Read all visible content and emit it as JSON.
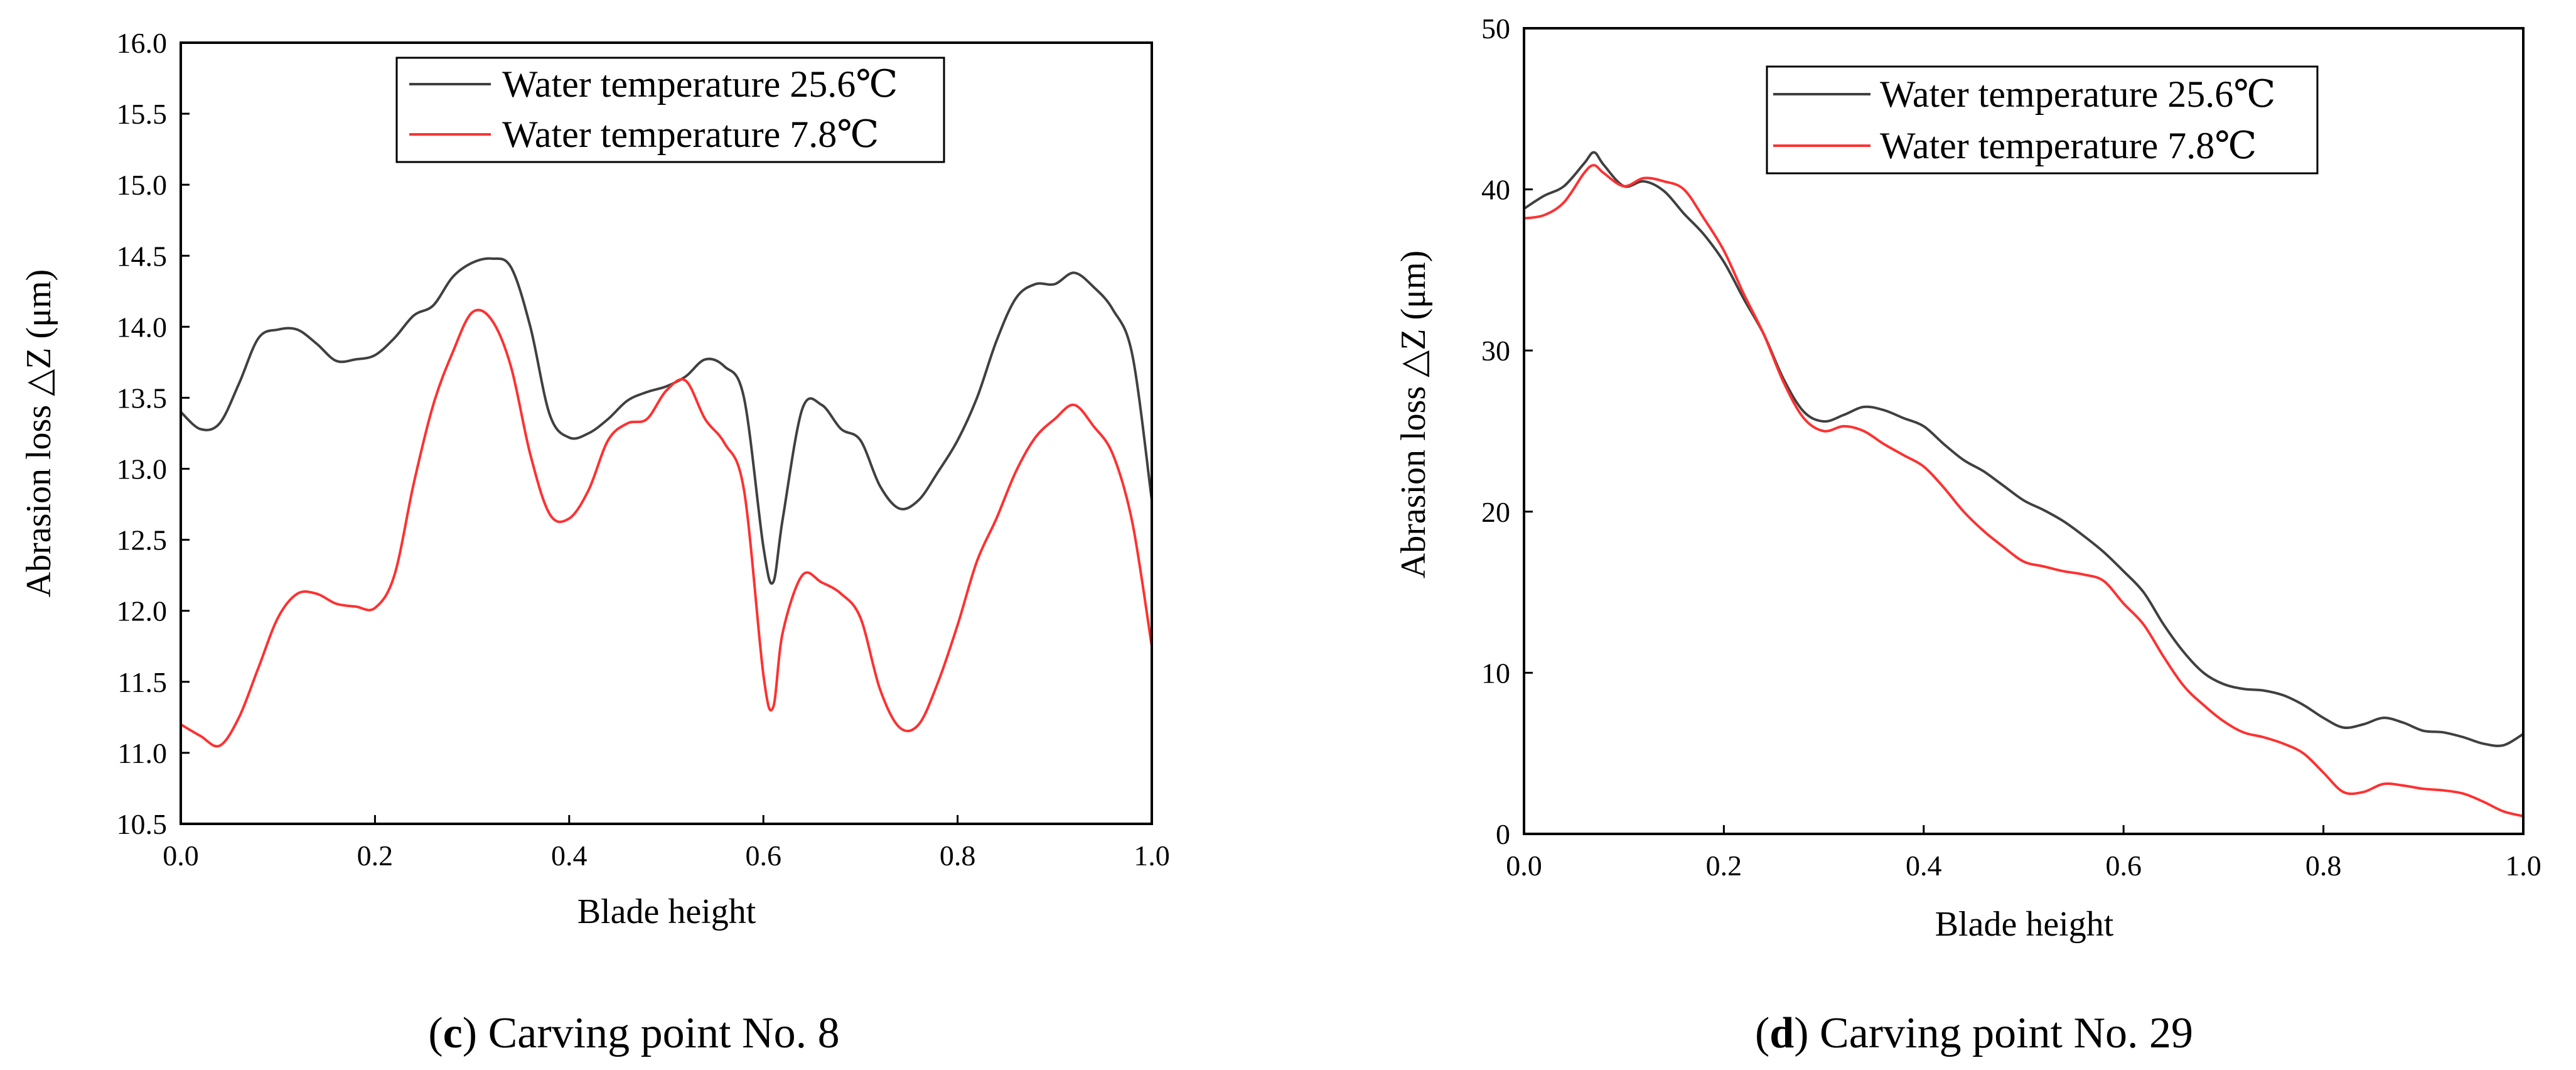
{
  "chart_data": [
    {
      "type": "line",
      "id": "c",
      "caption_letter": "c",
      "caption_text": "Carving point No. 8",
      "xlabel": "Blade height",
      "ylabel": "Abrasion loss △Z (μm)",
      "xlim": [
        0,
        1
      ],
      "ylim": [
        10.5,
        16
      ],
      "xticks": [
        0,
        0.2,
        0.4,
        0.6,
        0.8,
        1.0
      ],
      "xtick_labels": [
        "0.0",
        "0.2",
        "0.4",
        "0.6",
        "0.8",
        "1.0"
      ],
      "yticks": [
        10.5,
        11,
        11.5,
        12,
        12.5,
        13,
        13.5,
        14,
        14.5,
        15,
        15.5,
        16
      ],
      "ytick_labels": [
        "10.5",
        "11.0",
        "11.5",
        "12.0",
        "12.5",
        "13.0",
        "13.5",
        "14.0",
        "14.5",
        "15.0",
        "15.5",
        "16.0"
      ],
      "legend_position": "top-center",
      "series": [
        {
          "name": "Water temperature 25.6℃",
          "color": "#404040",
          "x": [
            0.0,
            0.02,
            0.04,
            0.06,
            0.08,
            0.1,
            0.12,
            0.14,
            0.16,
            0.18,
            0.2,
            0.22,
            0.24,
            0.26,
            0.28,
            0.3,
            0.32,
            0.34,
            0.36,
            0.38,
            0.4,
            0.42,
            0.44,
            0.46,
            0.48,
            0.5,
            0.52,
            0.54,
            0.56,
            0.58,
            0.6,
            0.61,
            0.62,
            0.64,
            0.66,
            0.68,
            0.7,
            0.72,
            0.74,
            0.76,
            0.78,
            0.8,
            0.82,
            0.84,
            0.86,
            0.88,
            0.9,
            0.92,
            0.94,
            0.96,
            0.98,
            1.0
          ],
          "y": [
            13.4,
            13.28,
            13.32,
            13.6,
            13.92,
            13.98,
            13.98,
            13.88,
            13.76,
            13.77,
            13.8,
            13.92,
            14.08,
            14.15,
            14.35,
            14.45,
            14.48,
            14.42,
            14.0,
            13.38,
            13.22,
            13.25,
            13.35,
            13.48,
            13.54,
            13.58,
            13.65,
            13.77,
            13.72,
            13.5,
            12.45,
            12.2,
            12.65,
            13.42,
            13.45,
            13.28,
            13.2,
            12.88,
            12.72,
            12.78,
            12.98,
            13.2,
            13.5,
            13.9,
            14.2,
            14.3,
            14.3,
            14.38,
            14.28,
            14.12,
            13.8,
            12.78
          ]
        },
        {
          "name": "Water temperature 7.8℃",
          "color": "#ff3030",
          "x": [
            0.0,
            0.02,
            0.04,
            0.06,
            0.08,
            0.1,
            0.12,
            0.14,
            0.16,
            0.18,
            0.2,
            0.22,
            0.24,
            0.26,
            0.28,
            0.3,
            0.32,
            0.34,
            0.36,
            0.38,
            0.4,
            0.42,
            0.44,
            0.46,
            0.48,
            0.5,
            0.52,
            0.54,
            0.56,
            0.58,
            0.6,
            0.61,
            0.62,
            0.64,
            0.66,
            0.68,
            0.7,
            0.72,
            0.74,
            0.76,
            0.78,
            0.8,
            0.82,
            0.84,
            0.86,
            0.88,
            0.9,
            0.92,
            0.94,
            0.96,
            0.98,
            1.0
          ],
          "y": [
            11.2,
            11.12,
            11.05,
            11.25,
            11.6,
            11.95,
            12.12,
            12.12,
            12.05,
            12.03,
            12.02,
            12.25,
            12.9,
            13.45,
            13.82,
            14.1,
            14.05,
            13.72,
            13.1,
            12.68,
            12.65,
            12.85,
            13.2,
            13.32,
            13.35,
            13.55,
            13.62,
            13.35,
            13.18,
            12.85,
            11.55,
            11.32,
            11.85,
            12.25,
            12.2,
            12.12,
            11.95,
            11.45,
            11.18,
            11.2,
            11.5,
            11.9,
            12.35,
            12.65,
            12.98,
            13.22,
            13.35,
            13.45,
            13.3,
            13.1,
            12.62,
            11.75
          ]
        }
      ]
    },
    {
      "type": "line",
      "id": "d",
      "caption_letter": "d",
      "caption_text": "Carving point No. 29",
      "xlabel": "Blade height",
      "ylabel": "Abrasion loss △Z (μm)",
      "xlim": [
        0,
        1
      ],
      "ylim": [
        0,
        50
      ],
      "xticks": [
        0,
        0.2,
        0.4,
        0.6,
        0.8,
        1.0
      ],
      "xtick_labels": [
        "0.0",
        "0.2",
        "0.4",
        "0.6",
        "0.8",
        "1.0"
      ],
      "yticks": [
        0,
        10,
        20,
        30,
        40,
        50
      ],
      "ytick_labels": [
        "0",
        "10",
        "20",
        "30",
        "40",
        "50"
      ],
      "legend_position": "top-center",
      "series": [
        {
          "name": "Water temperature 25.6℃",
          "color": "#404040",
          "x": [
            0.0,
            0.02,
            0.04,
            0.06,
            0.07,
            0.08,
            0.1,
            0.12,
            0.14,
            0.16,
            0.18,
            0.2,
            0.22,
            0.24,
            0.26,
            0.28,
            0.3,
            0.32,
            0.34,
            0.36,
            0.38,
            0.4,
            0.42,
            0.44,
            0.46,
            0.48,
            0.5,
            0.52,
            0.54,
            0.56,
            0.58,
            0.6,
            0.62,
            0.64,
            0.66,
            0.68,
            0.7,
            0.72,
            0.74,
            0.76,
            0.78,
            0.8,
            0.82,
            0.84,
            0.86,
            0.88,
            0.9,
            0.92,
            0.94,
            0.96,
            0.98,
            1.0
          ],
          "y": [
            38.8,
            39.6,
            40.2,
            41.6,
            42.3,
            41.5,
            40.2,
            40.5,
            39.9,
            38.5,
            37.2,
            35.5,
            33.2,
            31.0,
            28.2,
            26.2,
            25.6,
            26.0,
            26.5,
            26.3,
            25.8,
            25.3,
            24.2,
            23.2,
            22.5,
            21.6,
            20.7,
            20.1,
            19.4,
            18.5,
            17.5,
            16.3,
            15.0,
            13.0,
            11.3,
            10.0,
            9.3,
            9.0,
            8.9,
            8.6,
            8.0,
            7.2,
            6.6,
            6.8,
            7.2,
            6.9,
            6.4,
            6.3,
            6.0,
            5.6,
            5.5,
            6.2
          ]
        },
        {
          "name": "Water temperature 7.8℃",
          "color": "#ff3030",
          "x": [
            0.0,
            0.02,
            0.04,
            0.06,
            0.07,
            0.08,
            0.1,
            0.12,
            0.14,
            0.16,
            0.18,
            0.2,
            0.22,
            0.24,
            0.26,
            0.28,
            0.3,
            0.32,
            0.34,
            0.36,
            0.38,
            0.4,
            0.42,
            0.44,
            0.46,
            0.48,
            0.5,
            0.52,
            0.54,
            0.56,
            0.58,
            0.6,
            0.62,
            0.64,
            0.66,
            0.68,
            0.7,
            0.72,
            0.74,
            0.76,
            0.78,
            0.8,
            0.82,
            0.84,
            0.86,
            0.88,
            0.9,
            0.92,
            0.94,
            0.96,
            0.98,
            1.0
          ],
          "y": [
            38.2,
            38.4,
            39.2,
            41.0,
            41.5,
            41.0,
            40.2,
            40.7,
            40.5,
            40.0,
            38.2,
            36.2,
            33.5,
            31.0,
            28.0,
            25.8,
            25.0,
            25.3,
            25.0,
            24.2,
            23.5,
            22.8,
            21.5,
            20.0,
            18.8,
            17.8,
            16.9,
            16.6,
            16.3,
            16.1,
            15.7,
            14.3,
            13.0,
            11.0,
            9.2,
            8.0,
            7.0,
            6.3,
            6.0,
            5.6,
            5.0,
            3.8,
            2.6,
            2.6,
            3.1,
            3.0,
            2.8,
            2.7,
            2.5,
            2.0,
            1.4,
            1.1
          ]
        }
      ]
    }
  ]
}
